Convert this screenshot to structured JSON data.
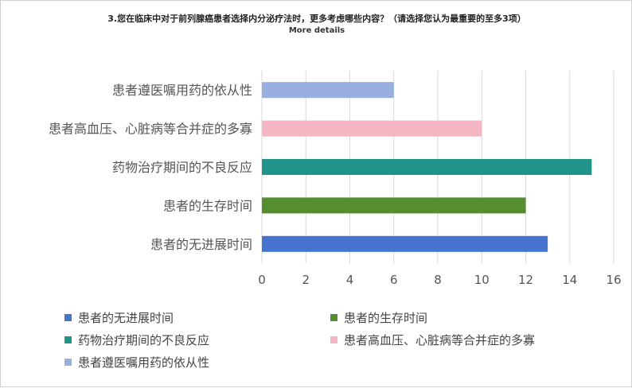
{
  "title": "3.您在临床中对于前列腺癌患者选择内分泌疗法时，更多考虑哪些内容？（请选择您认为最重要的至多3项）",
  "subtitle": "More details",
  "chart_data": {
    "type": "bar",
    "orientation": "horizontal",
    "categories": [
      "患者遵医嘱用药的依从性",
      "患者高血压、心脏病等合并症的多寡",
      "药物治疗期间的不良反应",
      "患者的生存时间",
      "患者的无进展时间"
    ],
    "values": [
      6,
      10,
      15,
      12,
      13
    ],
    "colors": [
      "#98AFE0",
      "#F4B6C2",
      "#20938A",
      "#548E2E",
      "#4673CE"
    ],
    "xlim": [
      0,
      16
    ],
    "xticks": [
      0,
      2,
      4,
      6,
      8,
      10,
      12,
      14,
      16
    ],
    "grid": true,
    "legend_position": "bottom"
  },
  "legend": [
    {
      "label": "患者的无进展时间",
      "color": "#4673CE"
    },
    {
      "label": "患者的生存时间",
      "color": "#548E2E"
    },
    {
      "label": "药物治疗期间的不良反应",
      "color": "#20938A"
    },
    {
      "label": "患者高血压、心脏病等合并症的多寡",
      "color": "#F4B6C2"
    },
    {
      "label": "患者遵医嘱用药的依从性",
      "color": "#98AFE0"
    }
  ]
}
